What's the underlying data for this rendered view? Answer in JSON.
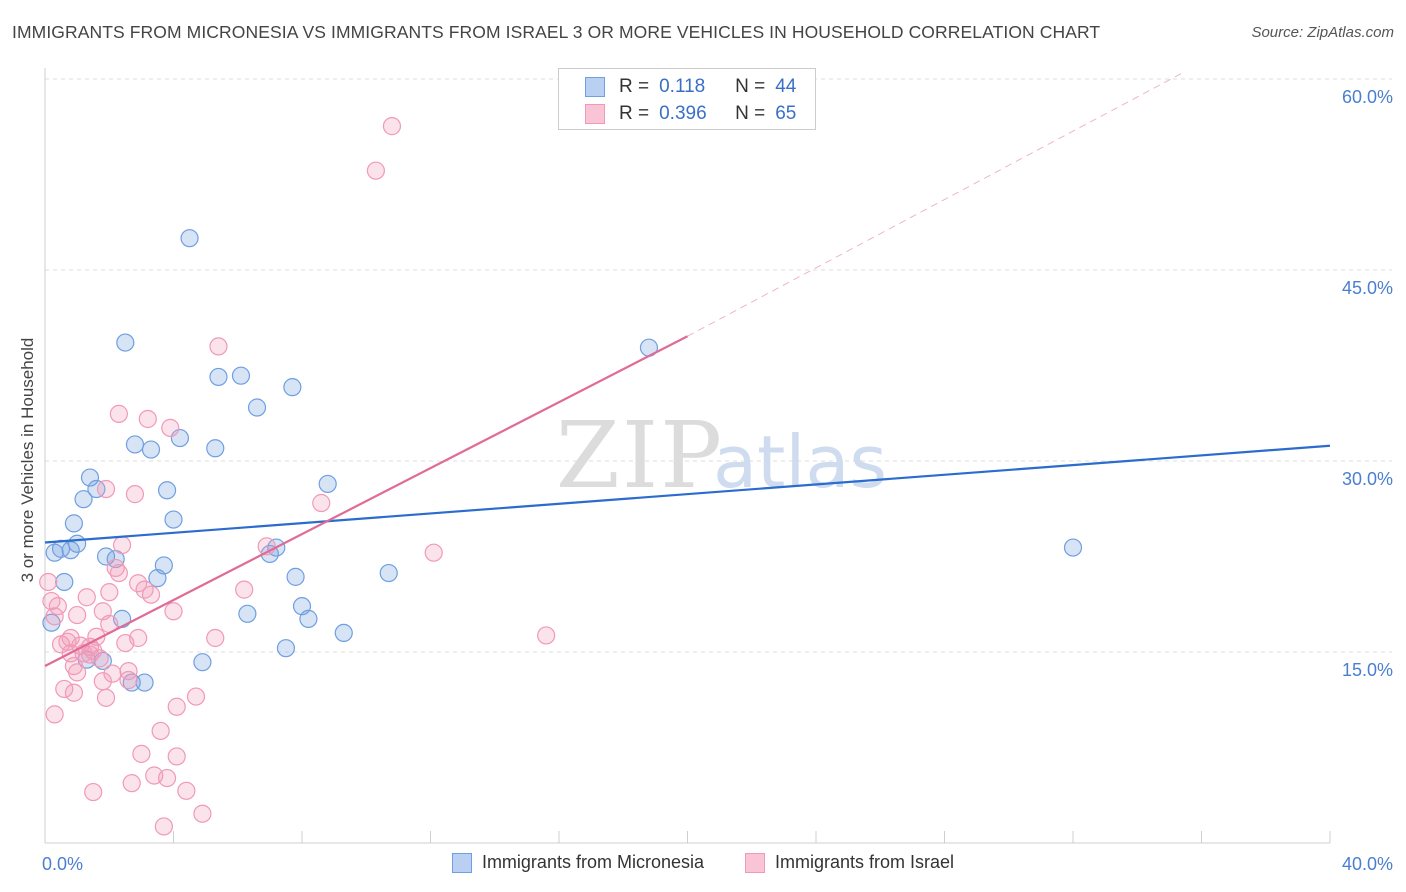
{
  "title": "IMMIGRANTS FROM MICRONESIA VS IMMIGRANTS FROM ISRAEL 3 OR MORE VEHICLES IN HOUSEHOLD CORRELATION CHART",
  "source": "Source: ZipAtlas.com",
  "watermark": {
    "zip": "ZIP",
    "atlas": "atlas"
  },
  "legend_top": [
    {
      "r_label": "R =",
      "r_value": "0.118",
      "n_label": "N =",
      "n_value": "44"
    },
    {
      "r_label": "R =",
      "r_value": "0.396",
      "n_label": "N =",
      "n_value": "65"
    }
  ],
  "chart_data": {
    "type": "scatter",
    "title": "IMMIGRANTS FROM MICRONESIA VS IMMIGRANTS FROM ISRAEL 3 OR MORE VEHICLES IN HOUSEHOLD CORRELATION CHART",
    "xlabel": "",
    "ylabel": "3 or more Vehicles in Household",
    "xlim": [
      0,
      40
    ],
    "ylim": [
      0,
      60
    ],
    "x_tick_labels": [
      "0.0%",
      "40.0%"
    ],
    "y_tick_labels": [
      "15.0%",
      "30.0%",
      "45.0%",
      "60.0%"
    ],
    "y_ticks": [
      15,
      30,
      45,
      60
    ],
    "grid": "horizontal dashed",
    "legend_position": "bottom",
    "series": [
      {
        "name": "Immigrants from Micronesia",
        "color": "#6f9fe0",
        "trend": {
          "x": [
            0,
            40
          ],
          "y": [
            23.6,
            31.2
          ],
          "color": "#2b6ccc"
        },
        "points": [
          [
            0.2,
            17.3
          ],
          [
            0.3,
            22.8
          ],
          [
            0.5,
            23.1
          ],
          [
            0.6,
            20.5
          ],
          [
            0.8,
            23.0
          ],
          [
            0.9,
            25.1
          ],
          [
            1.0,
            23.5
          ],
          [
            1.2,
            27.0
          ],
          [
            1.4,
            28.7
          ],
          [
            1.6,
            27.8
          ],
          [
            1.8,
            14.3
          ],
          [
            1.9,
            22.5
          ],
          [
            2.2,
            22.3
          ],
          [
            2.4,
            17.6
          ],
          [
            2.5,
            39.3
          ],
          [
            2.7,
            12.6
          ],
          [
            2.8,
            31.3
          ],
          [
            3.1,
            12.6
          ],
          [
            3.3,
            30.9
          ],
          [
            3.5,
            20.8
          ],
          [
            3.7,
            21.8
          ],
          [
            3.8,
            27.7
          ],
          [
            4.0,
            25.4
          ],
          [
            4.2,
            31.8
          ],
          [
            4.5,
            47.5
          ],
          [
            4.9,
            14.2
          ],
          [
            5.3,
            31.0
          ],
          [
            5.4,
            36.6
          ],
          [
            6.1,
            36.7
          ],
          [
            6.3,
            18.0
          ],
          [
            6.6,
            34.2
          ],
          [
            7.0,
            22.7
          ],
          [
            7.2,
            23.2
          ],
          [
            7.5,
            15.3
          ],
          [
            7.7,
            35.8
          ],
          [
            7.8,
            20.9
          ],
          [
            8.0,
            18.6
          ],
          [
            8.2,
            17.6
          ],
          [
            8.8,
            28.2
          ],
          [
            9.3,
            16.5
          ],
          [
            10.7,
            21.2
          ],
          [
            18.8,
            38.9
          ],
          [
            32.0,
            23.2
          ],
          [
            1.3,
            14.4
          ]
        ]
      },
      {
        "name": "Immigrants from Israel",
        "color": "#f199b6",
        "trend": {
          "x": [
            0,
            20
          ],
          "y": [
            13.9,
            39.8
          ],
          "color": "#e06b97"
        },
        "trend_extension": {
          "x": [
            20,
            35.5
          ],
          "y": [
            39.8,
            60.6
          ]
        },
        "points": [
          [
            0.1,
            20.5
          ],
          [
            0.2,
            19.0
          ],
          [
            0.3,
            17.8
          ],
          [
            0.3,
            10.1
          ],
          [
            0.4,
            18.6
          ],
          [
            0.5,
            15.6
          ],
          [
            0.6,
            12.1
          ],
          [
            0.7,
            15.8
          ],
          [
            0.8,
            16.1
          ],
          [
            0.8,
            14.9
          ],
          [
            0.9,
            13.9
          ],
          [
            1.0,
            13.4
          ],
          [
            1.0,
            17.9
          ],
          [
            1.1,
            15.5
          ],
          [
            1.2,
            14.9
          ],
          [
            1.3,
            19.3
          ],
          [
            1.4,
            14.8
          ],
          [
            1.5,
            4.0
          ],
          [
            1.5,
            15.1
          ],
          [
            1.6,
            16.2
          ],
          [
            1.7,
            14.5
          ],
          [
            1.8,
            12.7
          ],
          [
            1.8,
            18.2
          ],
          [
            1.9,
            27.8
          ],
          [
            1.9,
            11.4
          ],
          [
            2.0,
            17.2
          ],
          [
            2.0,
            19.7
          ],
          [
            2.1,
            13.3
          ],
          [
            2.2,
            21.6
          ],
          [
            2.3,
            21.2
          ],
          [
            2.3,
            33.7
          ],
          [
            2.4,
            23.4
          ],
          [
            2.5,
            15.7
          ],
          [
            2.6,
            12.8
          ],
          [
            2.6,
            13.5
          ],
          [
            2.7,
            4.7
          ],
          [
            2.8,
            27.4
          ],
          [
            2.9,
            20.4
          ],
          [
            2.9,
            16.1
          ],
          [
            3.0,
            7.0
          ],
          [
            3.1,
            19.9
          ],
          [
            3.2,
            33.3
          ],
          [
            3.3,
            19.5
          ],
          [
            3.4,
            5.3
          ],
          [
            3.6,
            8.8
          ],
          [
            3.7,
            1.3
          ],
          [
            3.8,
            5.1
          ],
          [
            3.9,
            32.6
          ],
          [
            4.0,
            18.2
          ],
          [
            4.1,
            10.7
          ],
          [
            4.1,
            6.8
          ],
          [
            4.4,
            4.1
          ],
          [
            4.7,
            11.5
          ],
          [
            4.9,
            2.3
          ],
          [
            5.3,
            16.1
          ],
          [
            5.4,
            39.0
          ],
          [
            6.2,
            19.9
          ],
          [
            6.9,
            23.3
          ],
          [
            8.6,
            26.7
          ],
          [
            10.3,
            52.8
          ],
          [
            10.8,
            56.3
          ],
          [
            12.1,
            22.8
          ],
          [
            15.6,
            16.3
          ],
          [
            0.9,
            11.8
          ],
          [
            1.4,
            15.4
          ]
        ]
      }
    ]
  }
}
